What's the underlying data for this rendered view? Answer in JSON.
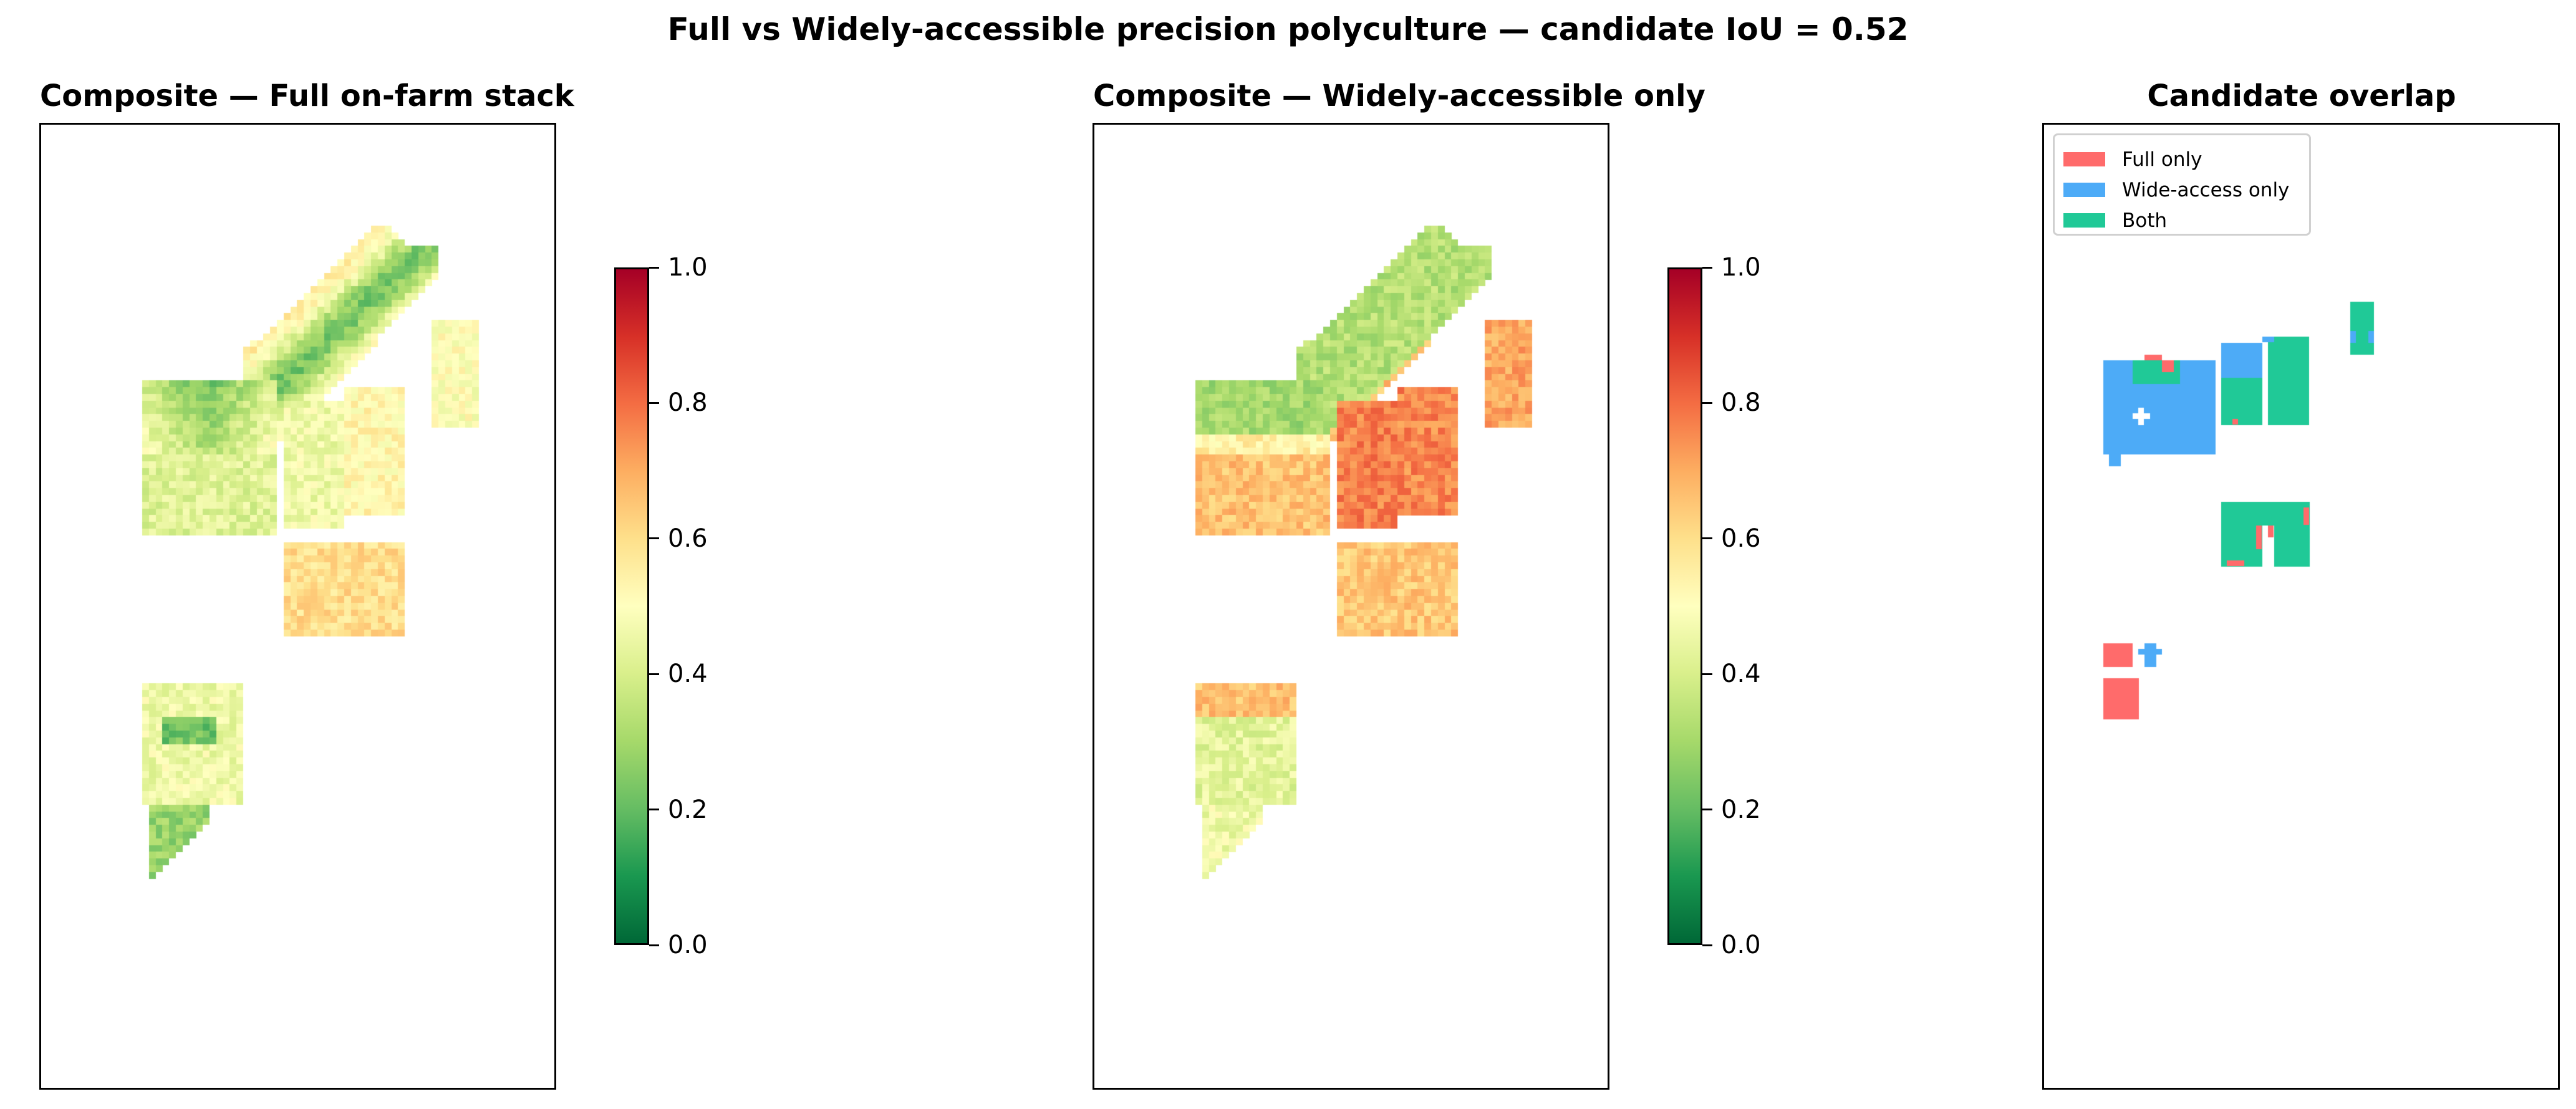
{
  "figure": {
    "suptitle": "Full vs Widely-accessible precision polyculture — candidate IoU = 0.52"
  },
  "panels": [
    {
      "title": "Composite — Full on-farm stack"
    },
    {
      "title": "Composite — Widely-accessible only"
    },
    {
      "title": "Candidate overlap"
    }
  ],
  "colorbar": {
    "colormap": "RdYlGn_r",
    "ticks": [
      "0.0",
      "0.2",
      "0.4",
      "0.6",
      "0.8",
      "1.0"
    ]
  },
  "legend": {
    "items": [
      {
        "label": "Full only",
        "color": "#ff6b6b"
      },
      {
        "label": "Wide-access only",
        "color": "#4dabf7"
      },
      {
        "label": "Both",
        "color": "#20c997"
      }
    ]
  },
  "chart_data": [
    {
      "type": "heatmap",
      "title": "Composite — Full on-farm stack",
      "colormap": "RdYlGn_r",
      "vmin": 0.0,
      "vmax": 1.0,
      "colorbar_ticks": [
        0.0,
        0.2,
        0.4,
        0.6,
        0.8,
        1.0
      ],
      "axes_visible": false,
      "regions": [
        {
          "name": "diagonal strip (NE)",
          "approx_value": 0.3,
          "note": "green core 0.15-0.3, edges 0.5-0.6"
        },
        {
          "name": "west field upper",
          "approx_value": 0.3
        },
        {
          "name": "west field lower",
          "approx_value": 0.42
        },
        {
          "name": "central field A",
          "approx_value": 0.48
        },
        {
          "name": "central field B",
          "approx_value": 0.52
        },
        {
          "name": "east narrow strip",
          "approx_value": 0.5
        },
        {
          "name": "south-central field",
          "approx_value": 0.6
        },
        {
          "name": "SW field upper",
          "approx_value": 0.45
        },
        {
          "name": "SW field lower wedge",
          "approx_value": 0.28
        }
      ]
    },
    {
      "type": "heatmap",
      "title": "Composite — Widely-accessible only",
      "colormap": "RdYlGn_r",
      "vmin": 0.0,
      "vmax": 1.0,
      "colorbar_ticks": [
        0.0,
        0.2,
        0.4,
        0.6,
        0.8,
        1.0
      ],
      "axes_visible": false,
      "regions": [
        {
          "name": "diagonal strip (NE)",
          "approx_value": 0.33,
          "note": "SE edge 0.6-0.7"
        },
        {
          "name": "west field upper",
          "approx_value": 0.3
        },
        {
          "name": "west field lower",
          "approx_value": 0.65
        },
        {
          "name": "central field A",
          "approx_value": 0.76
        },
        {
          "name": "central field B",
          "approx_value": 0.75
        },
        {
          "name": "east narrow strip",
          "approx_value": 0.7
        },
        {
          "name": "south-central field",
          "approx_value": 0.65
        },
        {
          "name": "SW field upper band",
          "approx_value": 0.65
        },
        {
          "name": "SW field middle",
          "approx_value": 0.43
        },
        {
          "name": "SW field lower wedge",
          "approx_value": 0.45
        }
      ]
    },
    {
      "type": "heatmap",
      "title": "Candidate overlap",
      "categories": [
        "Full only",
        "Wide-access only",
        "Both"
      ],
      "colors": [
        "#ff6b6b",
        "#4dabf7",
        "#20c997"
      ],
      "legend_position": "upper left",
      "iou": 0.52,
      "axes_visible": false
    }
  ]
}
